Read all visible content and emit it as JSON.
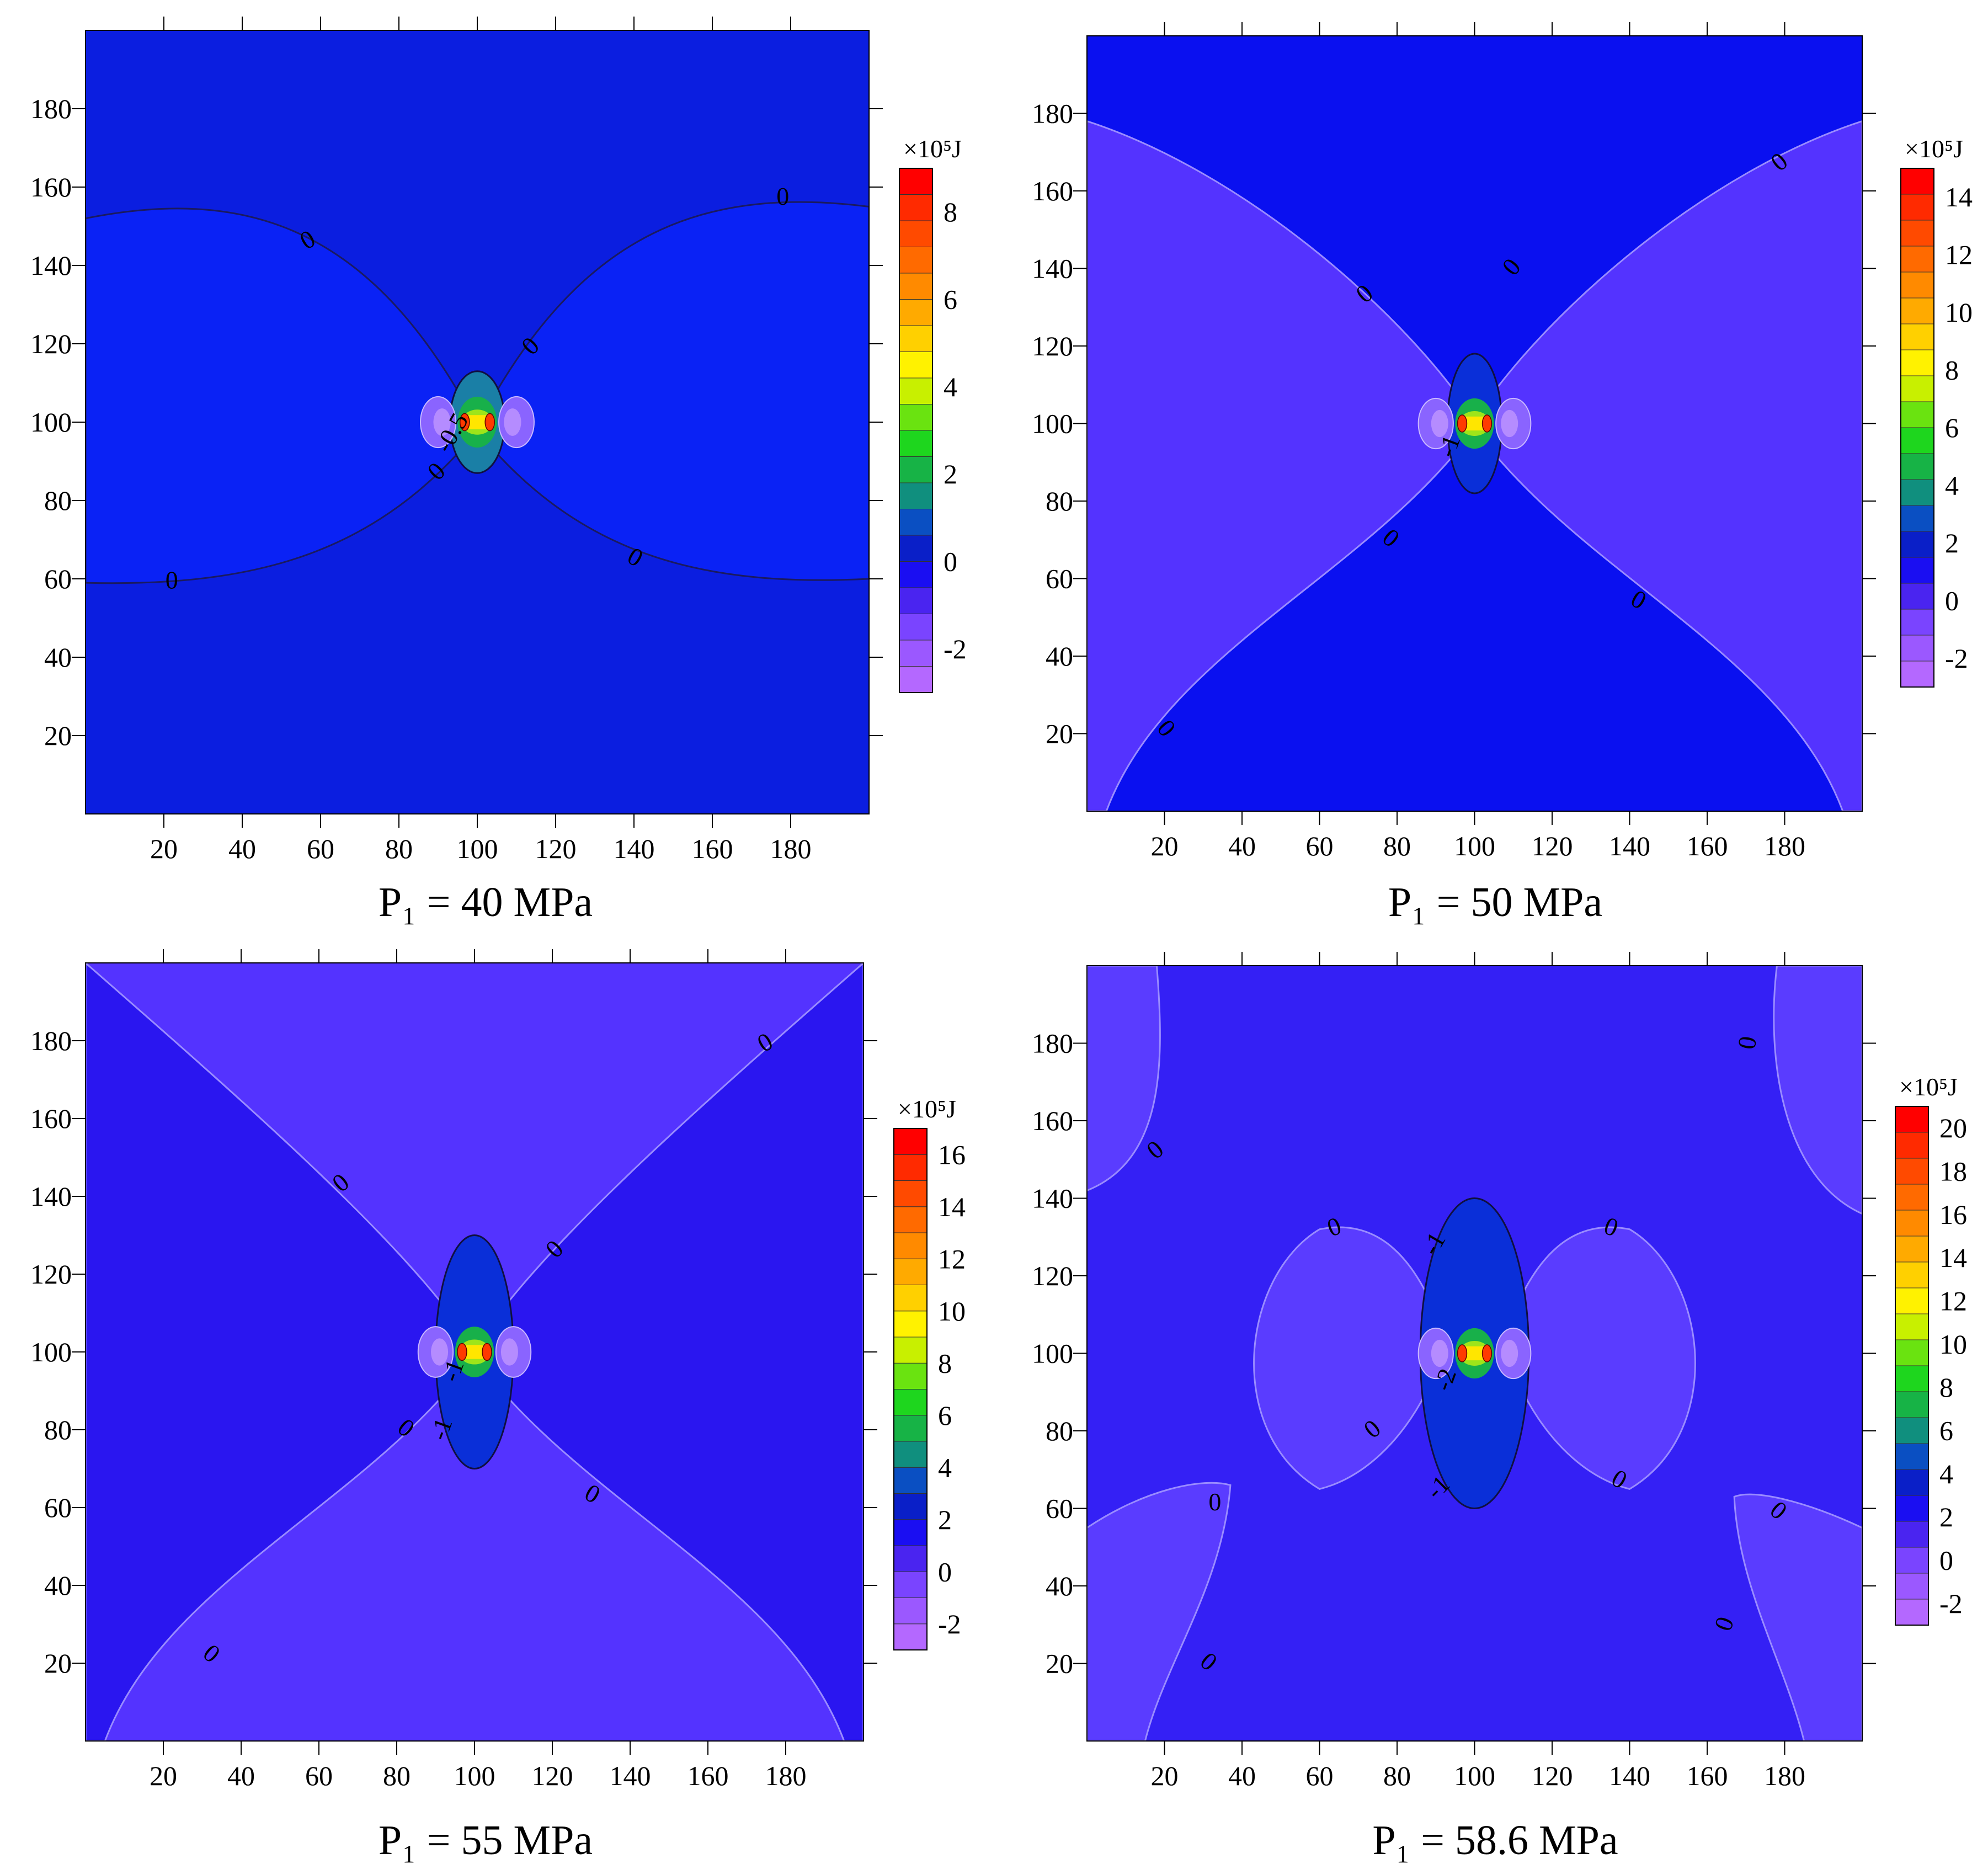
{
  "figure": {
    "panels": [
      {
        "caption": "P₁ = 40 MPa",
        "chart_data": {
          "type": "heatmap",
          "xlim": [
            0,
            200
          ],
          "ylim": [
            0,
            200
          ],
          "x_ticks": [
            20,
            40,
            60,
            80,
            100,
            120,
            140,
            160,
            180
          ],
          "y_ticks": [
            20,
            40,
            60,
            80,
            100,
            120,
            140,
            160,
            180
          ],
          "colorbar": {
            "unit": "×10⁵J",
            "ticks": [
              8,
              6,
              4,
              2,
              0,
              -2
            ],
            "min": -3,
            "max": 9,
            "colors": [
              "#b468ff",
              "#9b58ff",
              "#7a44ff",
              "#4a24f0",
              "#1a0ef2",
              "#0a1fc8",
              "#0a4fc2",
              "#108f7e",
              "#17b346",
              "#1ed61e",
              "#6ae310",
              "#c8f000",
              "#fff200",
              "#ffd000",
              "#ffaa00",
              "#ff8a00",
              "#ff6a00",
              "#ff4a00",
              "#ff2a00",
              "#ff0000"
            ]
          },
          "field": {
            "background": "#0b1ee0",
            "lobes": "#0a22f5"
          },
          "contour_labels": [
            "0",
            "0",
            "0",
            "0",
            "0",
            "0",
            "0",
            "-0.5"
          ]
        }
      },
      {
        "caption": "P₁ = 50 MPa",
        "chart_data": {
          "type": "heatmap",
          "xlim": [
            0,
            200
          ],
          "ylim": [
            0,
            200
          ],
          "x_ticks": [
            20,
            40,
            60,
            80,
            100,
            120,
            140,
            160,
            180
          ],
          "y_ticks": [
            20,
            40,
            60,
            80,
            100,
            120,
            140,
            160,
            180
          ],
          "colorbar": {
            "unit": "×10⁵J",
            "ticks": [
              14,
              12,
              10,
              8,
              6,
              4,
              2,
              0,
              -2
            ],
            "min": -3,
            "max": 15,
            "colors": [
              "#b468ff",
              "#9b58ff",
              "#7a44ff",
              "#4a24f0",
              "#1a0ef2",
              "#0a1fc8",
              "#0a4fc2",
              "#108f7e",
              "#17b346",
              "#1ed61e",
              "#6ae310",
              "#c8f000",
              "#fff200",
              "#ffd000",
              "#ffaa00",
              "#ff8a00",
              "#ff6a00",
              "#ff4a00",
              "#ff2a00",
              "#ff0000"
            ]
          },
          "field": {
            "background": "#0a10f0",
            "lobes": "#5433ff"
          },
          "contour_labels": [
            "0",
            "0",
            "0",
            "0",
            "0",
            "0",
            "0",
            "-1"
          ]
        }
      },
      {
        "caption": "P₁ = 55 MPa",
        "chart_data": {
          "type": "heatmap",
          "xlim": [
            0,
            200
          ],
          "ylim": [
            0,
            200
          ],
          "x_ticks": [
            20,
            40,
            60,
            80,
            100,
            120,
            140,
            160,
            180
          ],
          "y_ticks": [
            20,
            40,
            60,
            80,
            100,
            120,
            140,
            160,
            180
          ],
          "colorbar": {
            "unit": "×10⁵J",
            "ticks": [
              16,
              14,
              12,
              10,
              8,
              6,
              4,
              2,
              0,
              -2
            ],
            "min": -3,
            "max": 17,
            "colors": [
              "#b468ff",
              "#9b58ff",
              "#7a44ff",
              "#4a24f0",
              "#1a0ef2",
              "#0a1fc8",
              "#0a4fc2",
              "#108f7e",
              "#17b346",
              "#1ed61e",
              "#6ae310",
              "#c8f000",
              "#fff200",
              "#ffd000",
              "#ffaa00",
              "#ff8a00",
              "#ff6a00",
              "#ff4a00",
              "#ff2a00",
              "#ff0000"
            ]
          },
          "field": {
            "background": "#5433ff",
            "lobes": "#2a16f0"
          },
          "contour_labels": [
            "0",
            "0",
            "0",
            "0",
            "0",
            "0",
            "-1",
            "-1"
          ]
        }
      },
      {
        "caption": "P₁ = 58.6 MPa",
        "chart_data": {
          "type": "heatmap",
          "xlim": [
            0,
            200
          ],
          "ylim": [
            0,
            200
          ],
          "x_ticks": [
            20,
            40,
            60,
            80,
            100,
            120,
            140,
            160,
            180
          ],
          "y_ticks": [
            20,
            40,
            60,
            80,
            100,
            120,
            140,
            160,
            180
          ],
          "colorbar": {
            "unit": "×10⁵J",
            "ticks": [
              20,
              18,
              16,
              14,
              12,
              10,
              8,
              6,
              4,
              2,
              0,
              -2
            ],
            "min": -3,
            "max": 21,
            "colors": [
              "#b468ff",
              "#9b58ff",
              "#7a44ff",
              "#4a24f0",
              "#1a0ef2",
              "#0a1fc8",
              "#0a4fc2",
              "#108f7e",
              "#17b346",
              "#1ed61e",
              "#6ae310",
              "#c8f000",
              "#fff200",
              "#ffd000",
              "#ffaa00",
              "#ff8a00",
              "#ff6a00",
              "#ff4a00",
              "#ff2a00",
              "#ff0000"
            ]
          },
          "field": {
            "background": "#3420f5",
            "lobes": "#5a3cff"
          },
          "contour_labels": [
            "0",
            "0",
            "0",
            "0",
            "0",
            "0",
            "0",
            "0",
            "0",
            "0",
            "-1",
            "-1",
            "-2"
          ]
        }
      }
    ]
  }
}
